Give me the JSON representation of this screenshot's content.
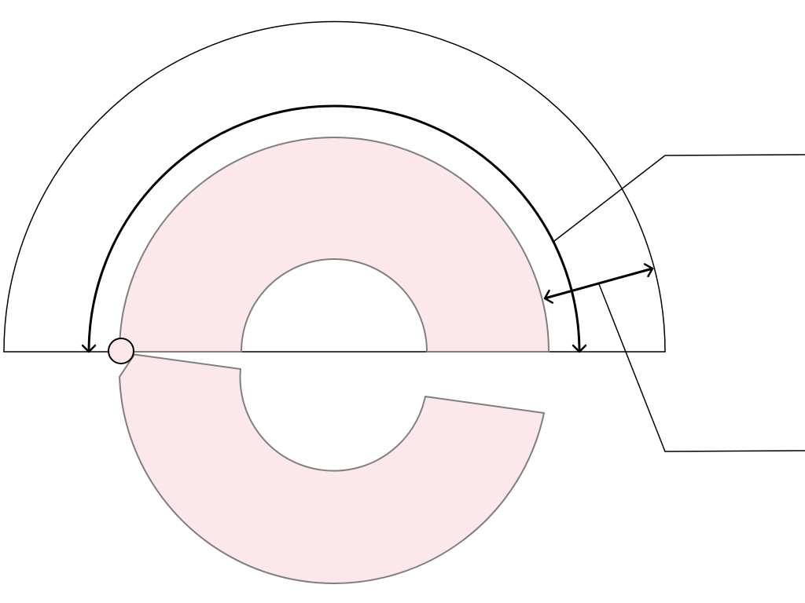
{
  "diagram": {
    "description_labels": [],
    "colors": {
      "ring_fill": "#fce8ea",
      "ring_stroke": "#7f7f7f",
      "line": "#000000",
      "pin_fill": "#fce8ea"
    },
    "elements": [
      "outer-semicircle",
      "annulus-upper-half",
      "annulus-lower-part",
      "hinge-pin",
      "arc-dimension-arrow",
      "width-dimension-arrow",
      "leader-line-upper",
      "leader-line-lower"
    ]
  }
}
